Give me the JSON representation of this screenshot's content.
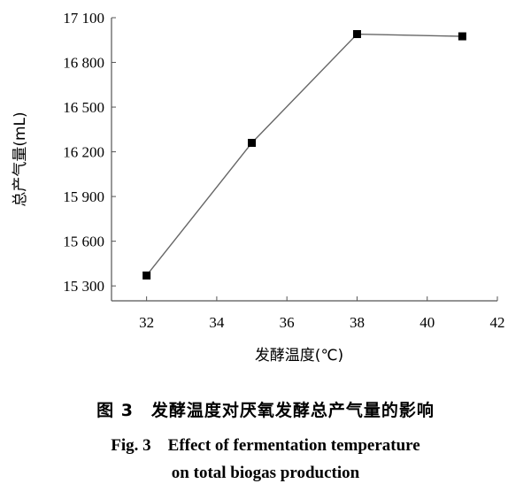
{
  "chart_data": {
    "type": "line",
    "x": [
      32,
      35,
      38,
      41
    ],
    "series": [
      {
        "values": [
          15370,
          16260,
          16990,
          16975
        ],
        "color": "#000000"
      }
    ],
    "xlabel": "发酵温度(℃)",
    "ylabel": "总产气量(mL)",
    "xlim": [
      31,
      42
    ],
    "ylim": [
      15200,
      17100
    ],
    "xticks": [
      32,
      34,
      36,
      38,
      40,
      42
    ],
    "yticks": [
      15300,
      15600,
      15900,
      16200,
      16500,
      16800,
      17100
    ],
    "ytick_labels": [
      "15 300",
      "15 600",
      "15 900",
      "16 200",
      "16 500",
      "16 800",
      "17 100"
    ],
    "grid": false,
    "legend": "none"
  },
  "caption": {
    "zh": "图 3　发酵温度对厌氧发酵总产气量的影响",
    "en_line1": "Fig. 3　Effect of fermentation temperature",
    "en_line2": "on total biogas production"
  }
}
